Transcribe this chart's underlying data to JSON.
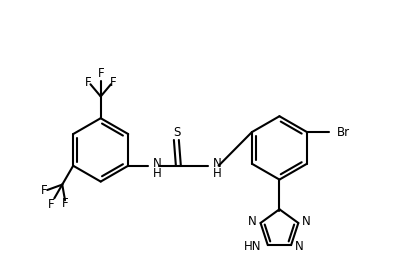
{
  "background_color": "#ffffff",
  "line_color": "#000000",
  "line_width": 1.5,
  "font_size": 8.5,
  "figsize": [
    4.0,
    2.78
  ],
  "dpi": 100,
  "xlim": [
    0,
    400
  ],
  "ylim": [
    0,
    278
  ]
}
